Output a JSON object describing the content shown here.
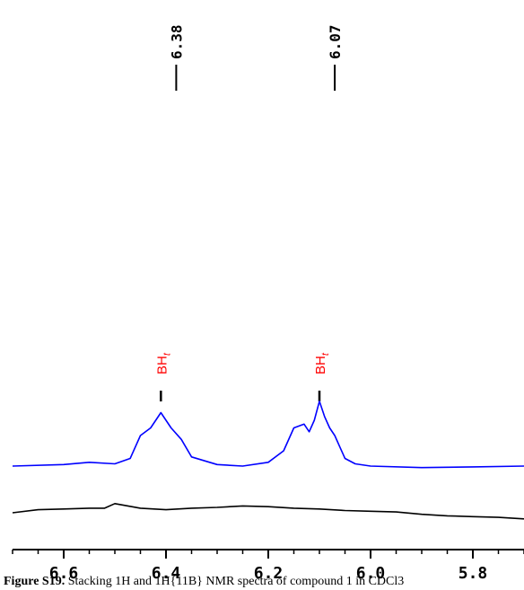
{
  "chart_data": {
    "type": "line",
    "title": "",
    "xlabel": "",
    "ylabel": "",
    "x_reversed": true,
    "xlim": [
      6.7,
      5.7
    ],
    "x_ticks": [
      6.6,
      6.4,
      6.2,
      6.0,
      5.8
    ],
    "x_tick_labels": [
      "6.6",
      "6.4",
      "6.2",
      "6.0",
      "5.8"
    ],
    "grid": false,
    "legend": "none",
    "peak_labels": [
      {
        "x": 6.38,
        "label": "6.38"
      },
      {
        "x": 6.07,
        "label": "6.07"
      }
    ],
    "assignments": [
      {
        "x": 6.41,
        "label": "BH",
        "subscript": "t"
      },
      {
        "x": 6.1,
        "label": "BH",
        "subscript": "t"
      }
    ],
    "series": [
      {
        "color": "#0000ff",
        "x": [
          6.7,
          6.6,
          6.55,
          6.5,
          6.47,
          6.45,
          6.43,
          6.41,
          6.39,
          6.37,
          6.35,
          6.3,
          6.25,
          6.2,
          6.17,
          6.15,
          6.13,
          6.12,
          6.11,
          6.1,
          6.09,
          6.08,
          6.07,
          6.06,
          6.05,
          6.03,
          6.0,
          5.9,
          5.8,
          5.7
        ],
        "y": [
          0.0,
          0.02,
          0.05,
          0.03,
          0.1,
          0.4,
          0.5,
          0.7,
          0.5,
          0.35,
          0.12,
          0.02,
          0.0,
          0.05,
          0.2,
          0.5,
          0.55,
          0.45,
          0.6,
          0.85,
          0.65,
          0.5,
          0.4,
          0.25,
          0.1,
          0.03,
          0.0,
          -0.02,
          -0.01,
          0.0
        ]
      },
      {
        "color": "#000000",
        "x": [
          6.7,
          6.65,
          6.6,
          6.55,
          6.52,
          6.5,
          6.45,
          6.4,
          6.35,
          6.3,
          6.25,
          6.2,
          6.15,
          6.1,
          6.05,
          6.0,
          5.95,
          5.9,
          5.85,
          5.8,
          5.75,
          5.7
        ],
        "y": [
          0.0,
          0.04,
          0.05,
          0.06,
          0.06,
          0.12,
          0.06,
          0.04,
          0.06,
          0.07,
          0.09,
          0.08,
          0.06,
          0.05,
          0.03,
          0.02,
          0.01,
          -0.02,
          -0.04,
          -0.05,
          -0.06,
          -0.08
        ]
      }
    ]
  },
  "caption": {
    "prefix": "Figure S19.",
    "text": " Stacking 1H and 1H{11B} NMR spectra of compound 1 in CDCl3"
  }
}
